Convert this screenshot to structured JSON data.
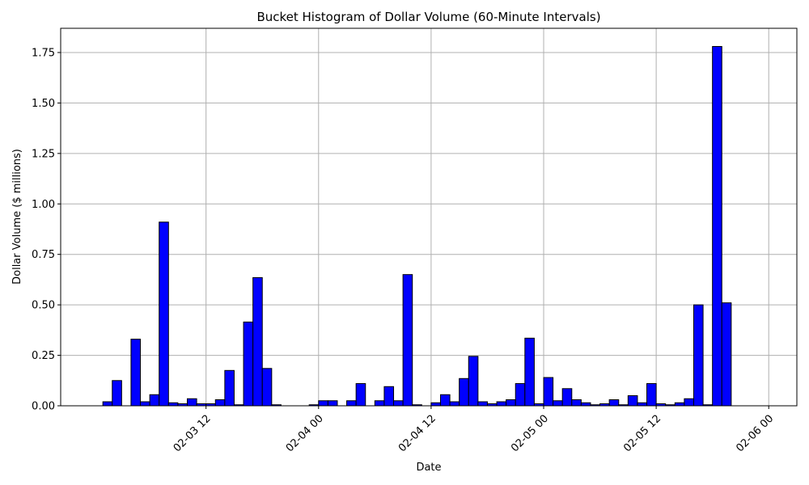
{
  "chart_data": {
    "type": "bar",
    "title": "Bucket Histogram of Dollar Volume (60-Minute Intervals)",
    "xlabel": "Date",
    "ylabel": "Dollar Volume ($ millions)",
    "grid": true,
    "ylim": [
      0,
      1.87
    ],
    "yticks": [
      0.0,
      0.25,
      0.5,
      0.75,
      1.0,
      1.25,
      1.5,
      1.75
    ],
    "ytick_labels": [
      "0.00",
      "0.25",
      "0.50",
      "0.75",
      "1.00",
      "1.25",
      "1.50",
      "1.75"
    ],
    "x_range": [
      "2023-02-02 20:30",
      "2023-02-06 03:00"
    ],
    "xticks": [
      "2023-02-03 12:00",
      "2023-02-04 00:00",
      "2023-02-04 12:00",
      "2023-02-05 00:00",
      "2023-02-05 12:00",
      "2023-02-06 00:00"
    ],
    "xtick_labels": [
      "02-03 12",
      "02-04 00",
      "02-04 12",
      "02-05 00",
      "02-05 12",
      "02-06 00"
    ],
    "bin_start": "2023-02-03 01:00",
    "bin_hours": 1,
    "values": [
      0.02,
      0.125,
      0.0,
      0.33,
      0.02,
      0.055,
      0.91,
      0.015,
      0.01,
      0.035,
      0.01,
      0.01,
      0.03,
      0.175,
      0.005,
      0.415,
      0.635,
      0.185,
      0.005,
      0.0,
      0.0,
      0.0,
      0.005,
      0.025,
      0.025,
      0.0,
      0.025,
      0.11,
      0.0,
      0.025,
      0.095,
      0.025,
      0.65,
      0.005,
      0.0,
      0.015,
      0.055,
      0.02,
      0.135,
      0.245,
      0.02,
      0.01,
      0.02,
      0.03,
      0.11,
      0.335,
      0.01,
      0.14,
      0.025,
      0.085,
      0.03,
      0.015,
      0.005,
      0.01,
      0.03,
      0.005,
      0.05,
      0.015,
      0.11,
      0.01,
      0.005,
      0.015,
      0.035,
      0.5,
      0.005,
      1.78,
      0.51
    ]
  }
}
